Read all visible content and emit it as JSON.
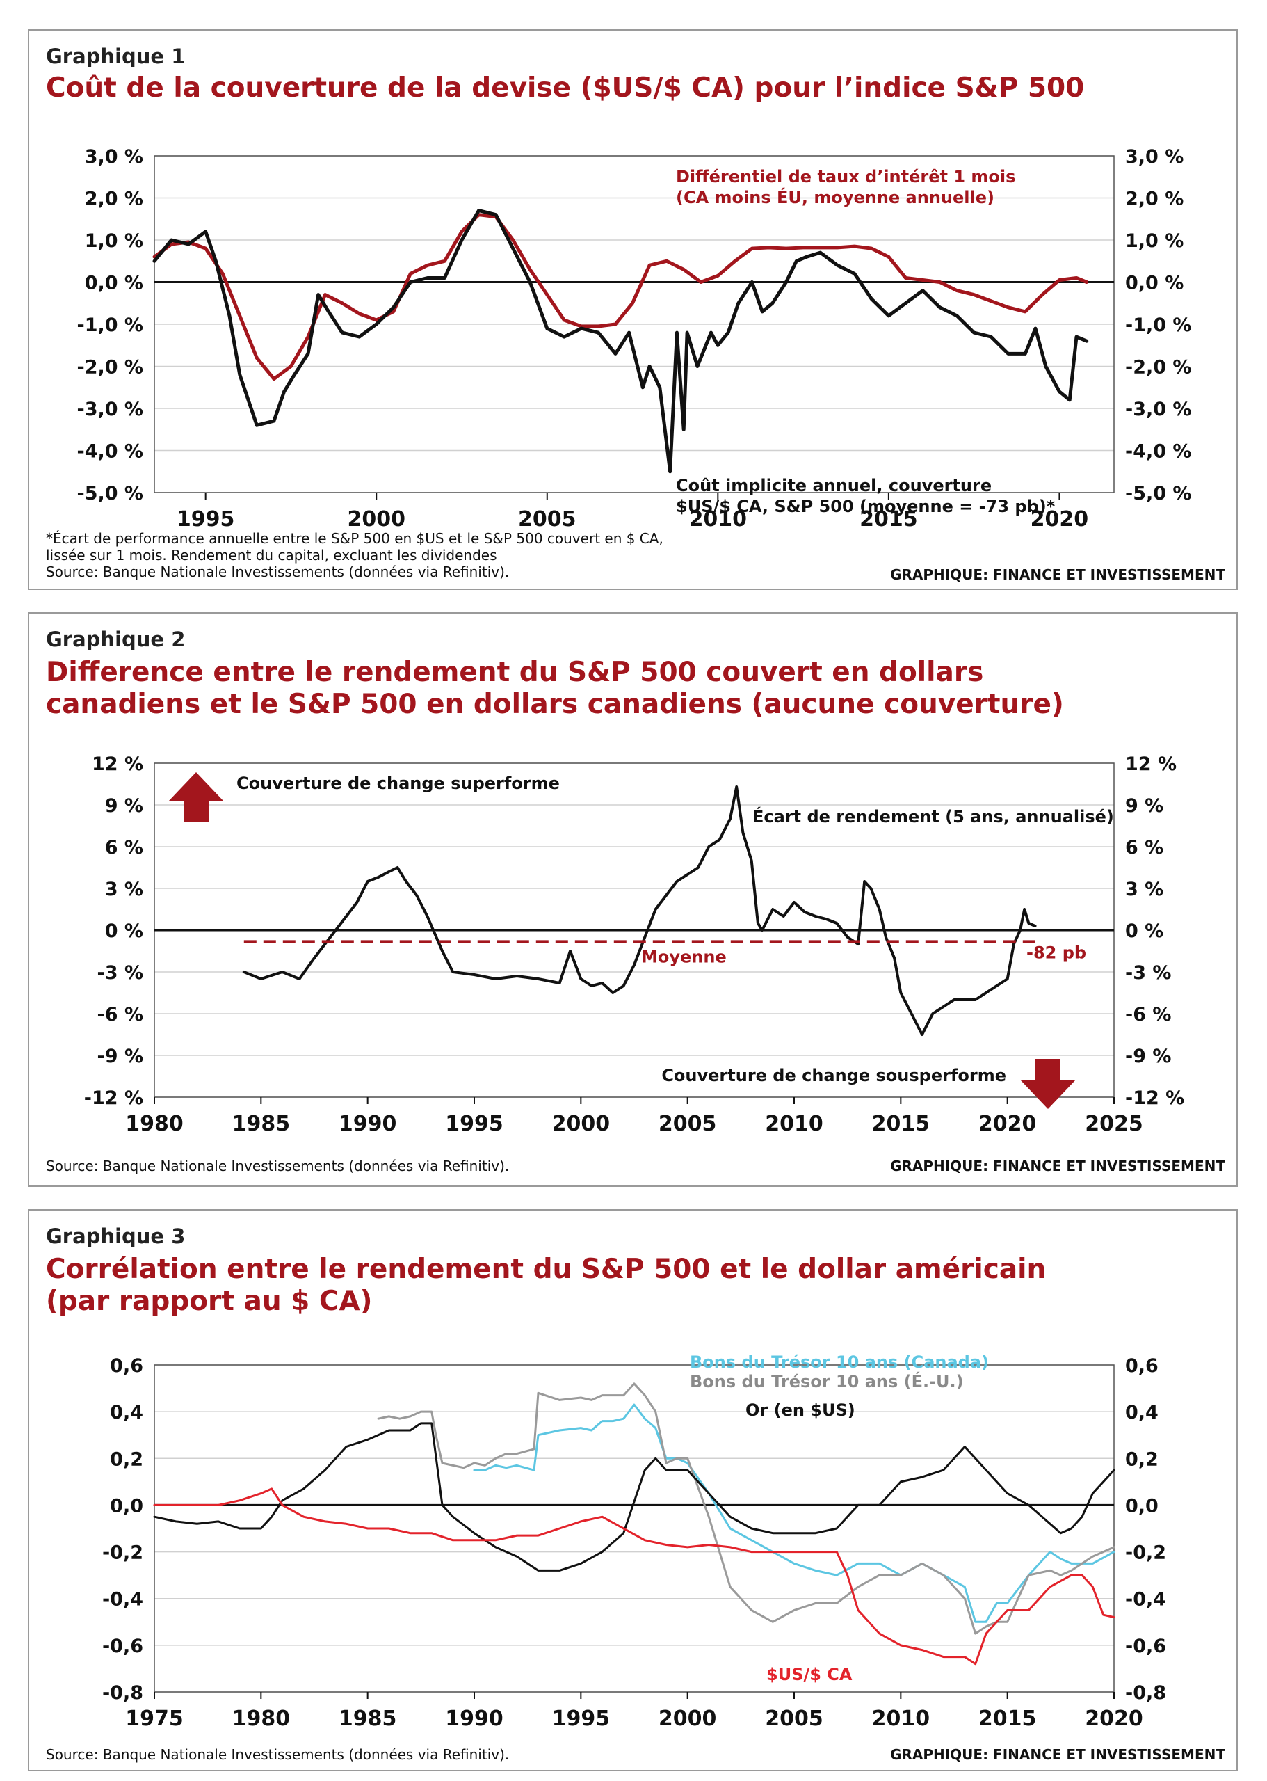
{
  "chart_data": [
    {
      "type": "line",
      "label": "Graphique 1",
      "title": "Coût de la couverture de la devise ($US/$ CA) pour l’indice S&P 500",
      "x_ticks": [
        1995,
        2000,
        2005,
        2010,
        2015,
        2020
      ],
      "xlim": [
        1993.5,
        2021.6
      ],
      "y_ticks": [
        "3,0 %",
        "2,0 %",
        "1,0 %",
        "0,0 %",
        "-1,0 %",
        "-2,0 %",
        "-3,0 %",
        "-4,0 %",
        "-5,0 %"
      ],
      "ylim": [
        -5.0,
        3.0
      ],
      "grid": true,
      "series": [
        {
          "name": "Différentiel de taux d’intérêt 1 mois\n(CA moins ÉU, moyenne annuelle)",
          "color": "#a3161d",
          "x": [
            1993.5,
            1994.0,
            1994.5,
            1995.0,
            1995.5,
            1996.0,
            1996.5,
            1997.0,
            1997.5,
            1998.0,
            1998.5,
            1999.0,
            1999.5,
            2000.0,
            2000.5,
            2001.0,
            2001.5,
            2002.0,
            2002.5,
            2003.0,
            2003.5,
            2004.0,
            2004.5,
            2005.0,
            2005.5,
            2006.0,
            2006.5,
            2007.0,
            2007.5,
            2008.0,
            2008.5,
            2009.0,
            2009.5,
            2010.0,
            2010.5,
            2011.0,
            2011.5,
            2012.0,
            2012.5,
            2013.0,
            2013.5,
            2014.0,
            2014.5,
            2015.0,
            2015.5,
            2016.0,
            2016.5,
            2017.0,
            2017.5,
            2018.0,
            2018.5,
            2019.0,
            2019.5,
            2020.0,
            2020.5,
            2020.8
          ],
          "y": [
            0.6,
            0.9,
            0.95,
            0.8,
            0.2,
            -0.8,
            -1.8,
            -2.3,
            -2.0,
            -1.3,
            -0.3,
            -0.5,
            -0.75,
            -0.9,
            -0.7,
            0.2,
            0.4,
            0.5,
            1.2,
            1.6,
            1.55,
            1.0,
            0.3,
            -0.3,
            -0.9,
            -1.05,
            -1.05,
            -1.0,
            -0.5,
            0.4,
            0.5,
            0.3,
            0.0,
            0.15,
            0.5,
            0.8,
            0.82,
            0.8,
            0.82,
            0.82,
            0.82,
            0.85,
            0.8,
            0.6,
            0.1,
            0.05,
            0.0,
            -0.2,
            -0.3,
            -0.45,
            -0.6,
            -0.7,
            -0.3,
            0.05,
            0.1,
            0.0
          ]
        },
        {
          "name": "Coût implicite annuel, couverture\n$US/$ CA, S&P 500 (moyenne = -73 pb)*",
          "color": "#111111",
          "x": [
            1993.5,
            1994.0,
            1994.5,
            1995.0,
            1995.3,
            1995.7,
            1996.0,
            1996.5,
            1997.0,
            1997.3,
            1997.6,
            1998.0,
            1998.3,
            1998.6,
            1999.0,
            1999.5,
            2000.0,
            2000.5,
            2001.0,
            2001.5,
            2002.0,
            2002.5,
            2003.0,
            2003.5,
            2004.0,
            2004.5,
            2005.0,
            2005.5,
            2006.0,
            2006.5,
            2007.0,
            2007.4,
            2007.8,
            2008.0,
            2008.3,
            2008.6,
            2008.8,
            2009.0,
            2009.1,
            2009.4,
            2009.8,
            2010.0,
            2010.3,
            2010.6,
            2011.0,
            2011.3,
            2011.6,
            2012.0,
            2012.3,
            2012.6,
            2013.0,
            2013.5,
            2014.0,
            2014.5,
            2015.0,
            2015.5,
            2016.0,
            2016.5,
            2017.0,
            2017.5,
            2018.0,
            2018.5,
            2019.0,
            2019.3,
            2019.6,
            2020.0,
            2020.3,
            2020.5,
            2020.8
          ],
          "y": [
            0.5,
            1.0,
            0.9,
            1.2,
            0.5,
            -0.8,
            -2.2,
            -3.4,
            -3.3,
            -2.6,
            -2.2,
            -1.7,
            -0.3,
            -0.7,
            -1.2,
            -1.3,
            -1.0,
            -0.6,
            0.0,
            0.1,
            0.1,
            1.0,
            1.7,
            1.6,
            0.8,
            0.0,
            -1.1,
            -1.3,
            -1.1,
            -1.2,
            -1.7,
            -1.2,
            -2.5,
            -2.0,
            -2.5,
            -4.5,
            -1.2,
            -3.5,
            -1.2,
            -2.0,
            -1.2,
            -1.5,
            -1.2,
            -0.5,
            0.0,
            -0.7,
            -0.5,
            0.0,
            0.5,
            0.6,
            0.7,
            0.4,
            0.2,
            -0.4,
            -0.8,
            -0.5,
            -0.2,
            -0.6,
            -0.8,
            -1.2,
            -1.3,
            -1.7,
            -1.7,
            -1.1,
            -2.0,
            -2.6,
            -2.8,
            -1.3,
            -1.4
          ]
        }
      ],
      "footnote": "*Écart de performance annuelle entre le S&P 500 en $US et le S&P 500 couvert en $ CA,\nlissée sur 1 mois. Rendement du capital, excluant les dividendes\nSource: Banque Nationale Investissements (données via Refinitiv).",
      "credit": "GRAPHIQUE: FINANCE ET INVESTISSEMENT"
    },
    {
      "type": "line",
      "label": "Graphique 2",
      "title": "Difference entre le rendement du S&P 500 couvert en dollars\ncanadiens et le S&P 500 en dollars canadiens (aucune couverture)",
      "x_ticks": [
        1980,
        1985,
        1990,
        1995,
        2000,
        2005,
        2010,
        2015,
        2020,
        2025
      ],
      "xlim": [
        1980,
        2025
      ],
      "y_ticks": [
        "12 %",
        "9 %",
        "6 %",
        "3 %",
        "0 %",
        "-3 %",
        "-6 %",
        "-9 %",
        "-12 %"
      ],
      "ylim": [
        -12,
        12
      ],
      "grid": true,
      "series": [
        {
          "name": "Écart de rendement (5 ans, annualisé)",
          "color": "#111111",
          "x": [
            1984.2,
            1985.0,
            1986.0,
            1986.8,
            1987.5,
            1988.0,
            1988.5,
            1989.0,
            1989.5,
            1990.0,
            1990.5,
            1991.0,
            1991.4,
            1991.8,
            1992.3,
            1992.8,
            1993.5,
            1994.0,
            1995.0,
            1996.0,
            1997.0,
            1998.0,
            1999.0,
            1999.5,
            2000.0,
            2000.5,
            2001.0,
            2001.5,
            2002.0,
            2002.5,
            2003.0,
            2003.5,
            2004.0,
            2004.5,
            2005.0,
            2005.5,
            2006.0,
            2006.5,
            2007.0,
            2007.3,
            2007.6,
            2008.0,
            2008.3,
            2008.5,
            2009.0,
            2009.5,
            2010.0,
            2010.5,
            2011.0,
            2011.5,
            2012.0,
            2012.5,
            2013.0,
            2013.3,
            2013.6,
            2014.0,
            2014.3,
            2014.7,
            2015.0,
            2015.5,
            2016.0,
            2016.5,
            2017.0,
            2017.5,
            2018.0,
            2018.5,
            2019.0,
            2019.5,
            2020.0,
            2020.3,
            2020.6,
            2020.8,
            2021.0,
            2021.3
          ],
          "y": [
            -3.0,
            -3.5,
            -3.0,
            -3.5,
            -2.0,
            -1.0,
            0.0,
            1.0,
            2.0,
            3.5,
            3.8,
            4.2,
            4.5,
            3.5,
            2.5,
            1.0,
            -1.5,
            -3.0,
            -3.2,
            -3.5,
            -3.3,
            -3.5,
            -3.8,
            -1.5,
            -3.5,
            -4.0,
            -3.8,
            -4.5,
            -4.0,
            -2.5,
            -0.5,
            1.5,
            2.5,
            3.5,
            4.0,
            4.5,
            6.0,
            6.5,
            8.0,
            10.3,
            7.0,
            5.0,
            0.5,
            0.0,
            1.5,
            1.0,
            2.0,
            1.3,
            1.0,
            0.8,
            0.5,
            -0.5,
            -1.0,
            3.5,
            3.0,
            1.5,
            -0.5,
            -2.0,
            -4.5,
            -6.0,
            -7.5,
            -6.0,
            -5.5,
            -5.0,
            -5.0,
            -5.0,
            -4.5,
            -4.0,
            -3.5,
            -1.0,
            0.0,
            1.5,
            0.5,
            0.3
          ]
        }
      ],
      "mean_label": "Moyenne",
      "mean_value_label": "-82 pb",
      "mean_value": -0.82,
      "outperform_label": "Couverture de change superforme",
      "underperform_label": "Couverture de change sousperforme",
      "footnote": "Source: Banque Nationale Investissements (données via Refinitiv).",
      "credit": "GRAPHIQUE: FINANCE ET INVESTISSEMENT"
    },
    {
      "type": "line",
      "label": "Graphique 3",
      "title": "Corrélation entre le rendement du S&P 500 et le dollar américain\n(par rapport au $ CA)",
      "x_ticks": [
        1975,
        1980,
        1985,
        1990,
        1995,
        2000,
        2005,
        2010,
        2015,
        2020
      ],
      "xlim": [
        1975,
        2020
      ],
      "y_ticks": [
        "0,6",
        "0,4",
        "0,2",
        "0,0",
        "-0,2",
        "-0,4",
        "-0,6",
        "-0,8"
      ],
      "ylim": [
        -0.8,
        0.6
      ],
      "grid": true,
      "series": [
        {
          "name": "Bons du Trésor 10 ans (Canada)",
          "color": "#5cc6e2",
          "x": [
            1990.0,
            1990.5,
            1991.0,
            1991.5,
            1992.0,
            1992.8,
            1993.0,
            1994.0,
            1995.0,
            1995.5,
            1996.0,
            1996.5,
            1997.0,
            1997.5,
            1998.0,
            1998.5,
            1999.0,
            1999.5,
            2000.0,
            2001.0,
            2002.0,
            2003.0,
            2004.0,
            2005.0,
            2006.0,
            2007.0,
            2008.0,
            2009.0,
            2010.0,
            2011.0,
            2012.0,
            2013.0,
            2013.5,
            2014.0,
            2014.5,
            2015.0,
            2016.0,
            2017.0,
            2017.5,
            2018.0,
            2019.0,
            2020.0
          ],
          "y": [
            0.15,
            0.15,
            0.17,
            0.16,
            0.17,
            0.15,
            0.3,
            0.32,
            0.33,
            0.32,
            0.36,
            0.36,
            0.37,
            0.43,
            0.37,
            0.33,
            0.2,
            0.2,
            0.18,
            0.05,
            -0.1,
            -0.15,
            -0.2,
            -0.25,
            -0.28,
            -0.3,
            -0.25,
            -0.25,
            -0.3,
            -0.25,
            -0.3,
            -0.35,
            -0.5,
            -0.5,
            -0.42,
            -0.42,
            -0.3,
            -0.2,
            -0.23,
            -0.25,
            -0.25,
            -0.2
          ]
        },
        {
          "name": "Bons du Trésor 10 ans (É.-U.)",
          "color": "#9a9a9a",
          "x": [
            1985.5,
            1986.0,
            1986.5,
            1987.0,
            1987.5,
            1988.0,
            1988.2,
            1988.5,
            1989.0,
            1989.5,
            1990.0,
            1990.5,
            1991.0,
            1991.5,
            1992.0,
            1992.8,
            1993.0,
            1994.0,
            1995.0,
            1995.5,
            1996.0,
            1996.5,
            1997.0,
            1997.5,
            1998.0,
            1998.5,
            1999.0,
            1999.5,
            2000.0,
            2001.0,
            2002.0,
            2003.0,
            2004.0,
            2005.0,
            2006.0,
            2007.0,
            2008.0,
            2009.0,
            2010.0,
            2011.0,
            2012.0,
            2013.0,
            2013.5,
            2014.0,
            2014.5,
            2015.0,
            2016.0,
            2017.0,
            2017.5,
            2018.0,
            2019.0,
            2020.0
          ],
          "y": [
            0.37,
            0.38,
            0.37,
            0.38,
            0.4,
            0.4,
            0.3,
            0.18,
            0.17,
            0.16,
            0.18,
            0.17,
            0.2,
            0.22,
            0.22,
            0.24,
            0.48,
            0.45,
            0.46,
            0.45,
            0.47,
            0.47,
            0.47,
            0.52,
            0.47,
            0.4,
            0.18,
            0.2,
            0.2,
            -0.05,
            -0.35,
            -0.45,
            -0.5,
            -0.45,
            -0.42,
            -0.42,
            -0.35,
            -0.3,
            -0.3,
            -0.25,
            -0.3,
            -0.4,
            -0.55,
            -0.52,
            -0.5,
            -0.5,
            -0.3,
            -0.28,
            -0.3,
            -0.28,
            -0.22,
            -0.18
          ]
        },
        {
          "name": "Or (en $US)",
          "color": "#111111",
          "x": [
            1975.0,
            1976.0,
            1977.0,
            1978.0,
            1979.0,
            1980.0,
            1980.5,
            1981.0,
            1982.0,
            1983.0,
            1984.0,
            1985.0,
            1986.0,
            1987.0,
            1987.5,
            1988.0,
            1988.5,
            1989.0,
            1990.0,
            1991.0,
            1992.0,
            1993.0,
            1994.0,
            1995.0,
            1996.0,
            1997.0,
            1998.0,
            1998.5,
            1999.0,
            2000.0,
            2001.0,
            2002.0,
            2003.0,
            2004.0,
            2005.0,
            2006.0,
            2007.0,
            2008.0,
            2009.0,
            2010.0,
            2011.0,
            2012.0,
            2012.5,
            2013.0,
            2014.0,
            2015.0,
            2016.0,
            2017.0,
            2017.5,
            2018.0,
            2018.5,
            2019.0,
            2019.5,
            2020.0
          ],
          "y": [
            -0.05,
            -0.07,
            -0.08,
            -0.07,
            -0.1,
            -0.1,
            -0.05,
            0.02,
            0.07,
            0.15,
            0.25,
            0.28,
            0.32,
            0.32,
            0.35,
            0.35,
            0.0,
            -0.05,
            -0.12,
            -0.18,
            -0.22,
            -0.28,
            -0.28,
            -0.25,
            -0.2,
            -0.12,
            0.15,
            0.2,
            0.15,
            0.15,
            0.05,
            -0.05,
            -0.1,
            -0.12,
            -0.12,
            -0.12,
            -0.1,
            0.0,
            0.0,
            0.1,
            0.12,
            0.15,
            0.2,
            0.25,
            0.15,
            0.05,
            0.0,
            -0.08,
            -0.12,
            -0.1,
            -0.05,
            0.05,
            0.1,
            0.15
          ]
        },
        {
          "name": "$US/$ CA",
          "color": "#e3232b",
          "x": [
            1975.0,
            1976.0,
            1977.0,
            1978.0,
            1979.0,
            1980.0,
            1980.5,
            1981.0,
            1982.0,
            1983.0,
            1984.0,
            1985.0,
            1986.0,
            1987.0,
            1988.0,
            1989.0,
            1990.0,
            1991.0,
            1992.0,
            1993.0,
            1994.0,
            1995.0,
            1996.0,
            1997.0,
            1998.0,
            1999.0,
            2000.0,
            2001.0,
            2002.0,
            2003.0,
            2004.0,
            2005.0,
            2006.0,
            2007.0,
            2007.5,
            2008.0,
            2009.0,
            2010.0,
            2011.0,
            2012.0,
            2013.0,
            2013.5,
            2014.0,
            2015.0,
            2016.0,
            2017.0,
            2018.0,
            2018.5,
            2019.0,
            2019.5,
            2020.0
          ],
          "y": [
            0.0,
            0.0,
            0.0,
            0.0,
            0.02,
            0.05,
            0.07,
            0.0,
            -0.05,
            -0.07,
            -0.08,
            -0.1,
            -0.1,
            -0.12,
            -0.12,
            -0.15,
            -0.15,
            -0.15,
            -0.13,
            -0.13,
            -0.1,
            -0.07,
            -0.05,
            -0.1,
            -0.15,
            -0.17,
            -0.18,
            -0.17,
            -0.18,
            -0.2,
            -0.2,
            -0.2,
            -0.2,
            -0.2,
            -0.3,
            -0.45,
            -0.55,
            -0.6,
            -0.62,
            -0.65,
            -0.65,
            -0.68,
            -0.55,
            -0.45,
            -0.45,
            -0.35,
            -0.3,
            -0.3,
            -0.35,
            -0.47,
            -0.48
          ]
        }
      ],
      "footnote": "Source: Banque Nationale Investissements (données via Refinitiv).",
      "credit": "GRAPHIQUE: FINANCE ET INVESTISSEMENT"
    }
  ]
}
